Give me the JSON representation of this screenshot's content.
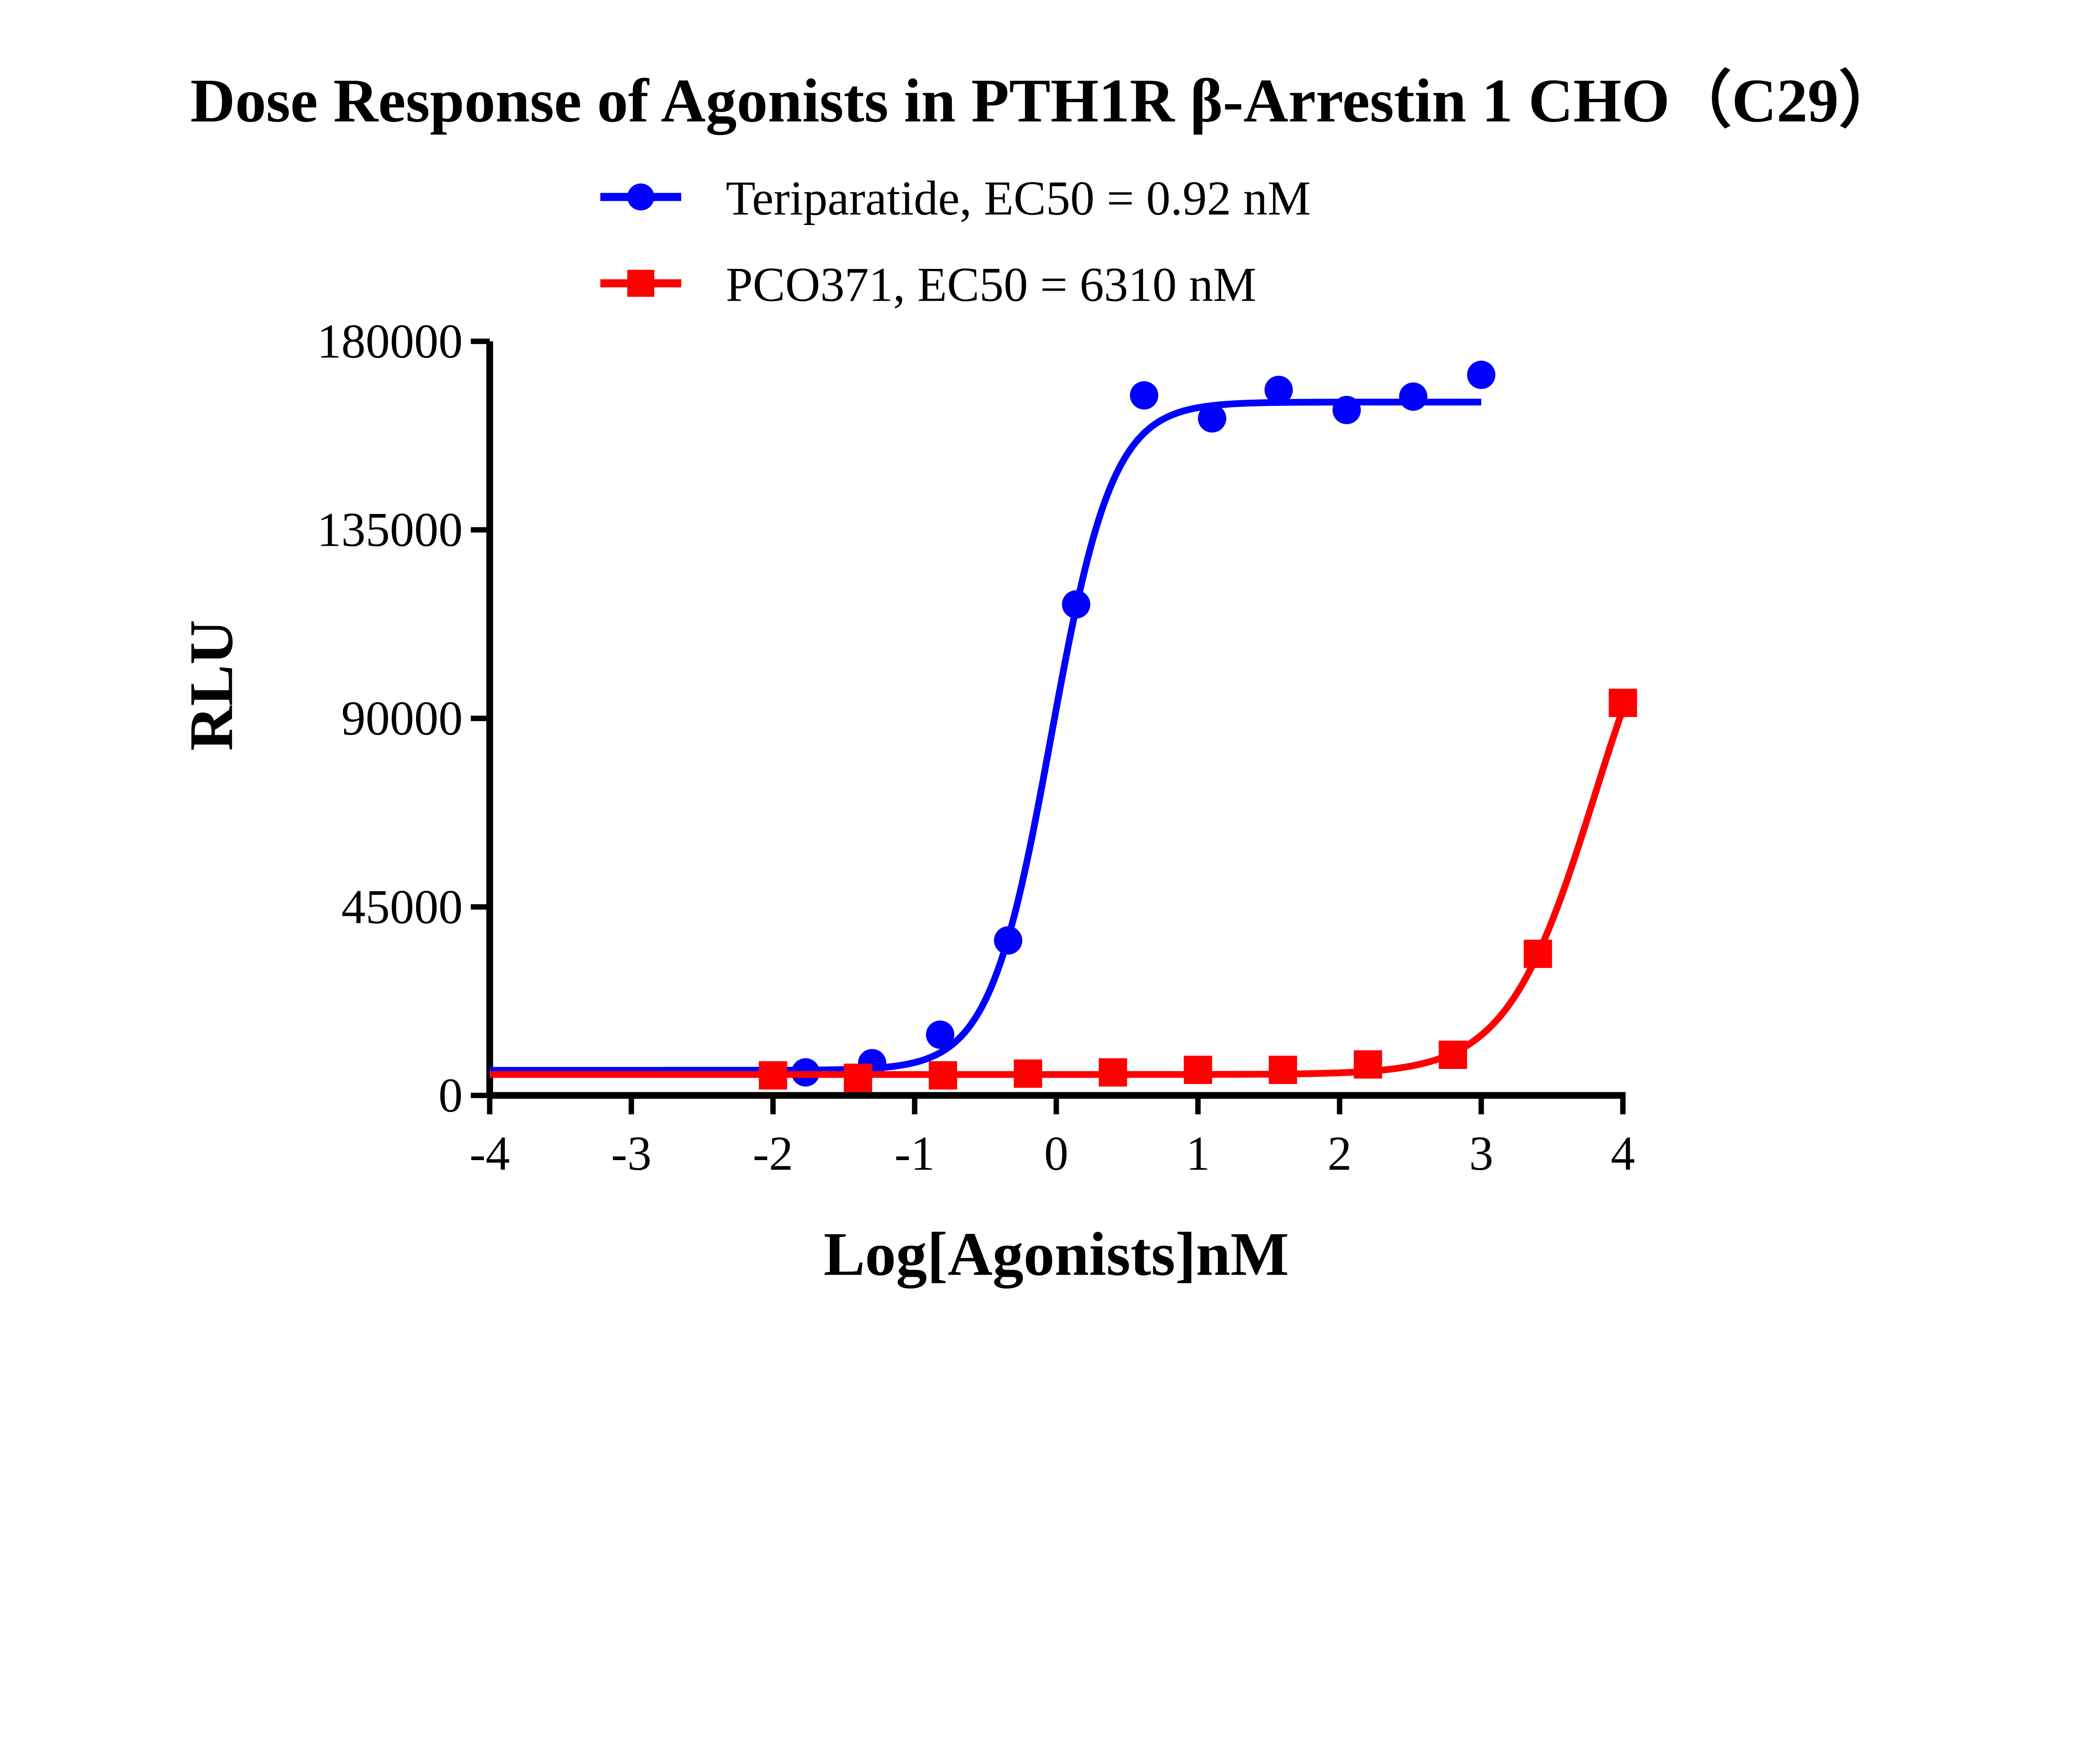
{
  "chart_data": {
    "type": "scatter",
    "title": "Dose Response of Agonists in PTH1R β-Arrestin 1 CHO（C29）",
    "xlabel": "Log[Agonists]nM",
    "ylabel": "RLU",
    "xlim": [
      -4,
      4
    ],
    "ylim": [
      0,
      180000
    ],
    "x_ticks": [
      "-4",
      "-3",
      "-2",
      "-1",
      "0",
      "1",
      "2",
      "3",
      "4"
    ],
    "y_ticks": [
      "0",
      "45000",
      "90000",
      "135000",
      "180000"
    ],
    "grid": false,
    "legend_position": "top-center",
    "series": [
      {
        "name": "Teriparatide, EC50 = 0.92 nM",
        "color": "#0000ff",
        "marker": "circle",
        "x": [
          -1.77,
          -1.3,
          -0.82,
          -0.34,
          0.14,
          0.62,
          1.1,
          1.57,
          2.05,
          2.52,
          3.0
        ],
        "y": [
          5500,
          7700,
          14500,
          37000,
          117200,
          167100,
          161600,
          168400,
          163600,
          166800,
          172000
        ],
        "fit": {
          "bottom": 6000,
          "top": 165500,
          "logEC50": -0.036,
          "hill": 2.0,
          "x_range": [
            -4,
            3
          ]
        }
      },
      {
        "name": "PCO371, EC50 = 6310 nM",
        "color": "#ff0000",
        "marker": "square",
        "x": [
          -2.0,
          -1.4,
          -0.8,
          -0.2,
          0.4,
          1.0,
          1.6,
          2.2,
          2.8,
          3.4,
          4.0
        ],
        "y": [
          4800,
          4200,
          4800,
          5200,
          5500,
          6100,
          6100,
          7400,
          9700,
          33800,
          93700
        ],
        "fit": {
          "bottom": 5000,
          "top": 138000,
          "logEC50": 3.8,
          "hill": 1.4,
          "x_range": [
            -4,
            4
          ]
        }
      }
    ]
  }
}
